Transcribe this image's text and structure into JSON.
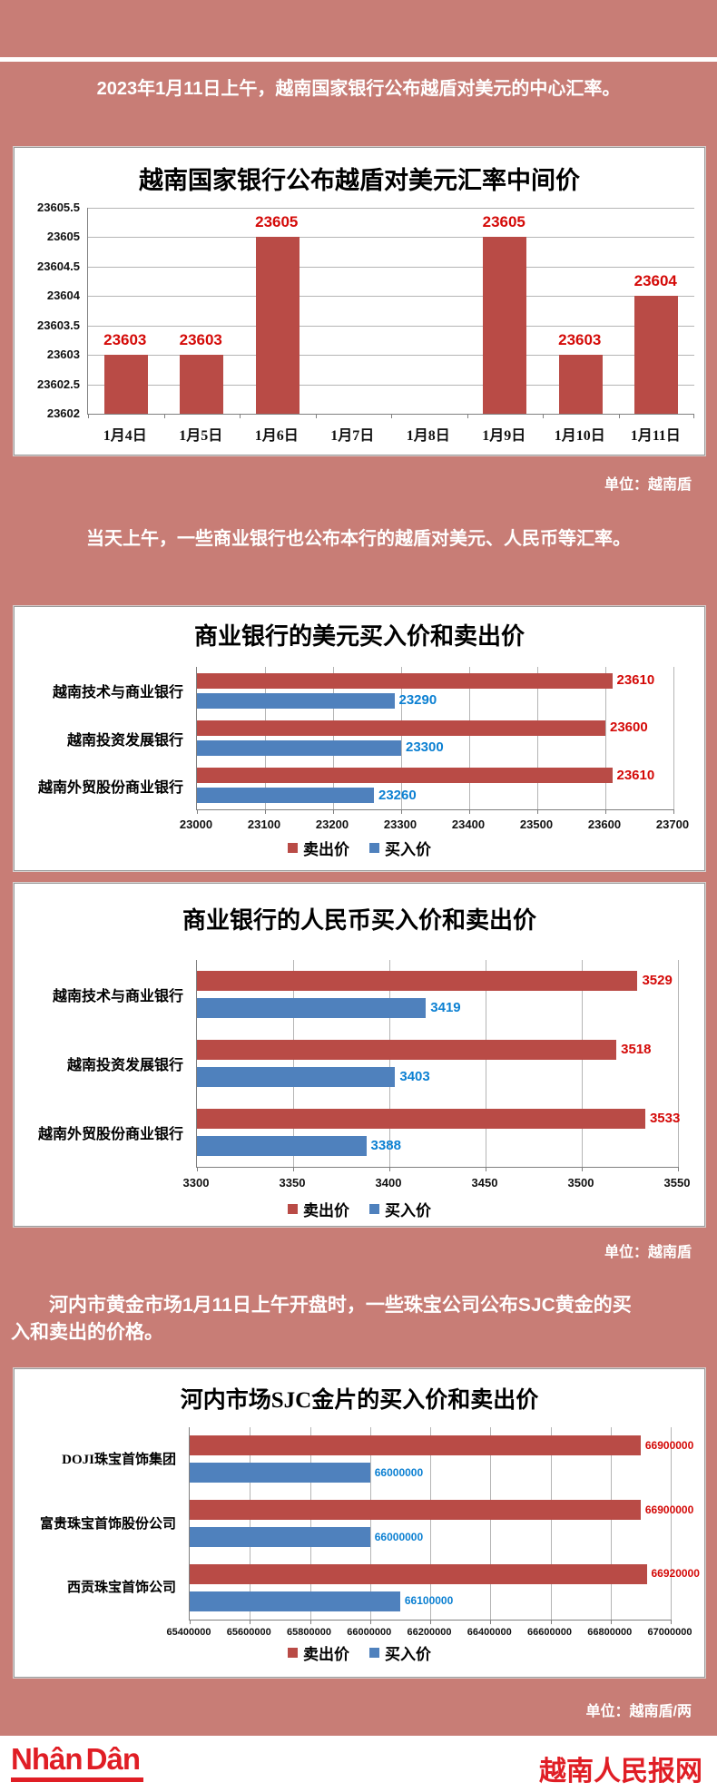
{
  "page": {
    "intro1": "2023年1月11日上午，越南国家银行公布越盾对美元的中心汇率。",
    "intro2": "当天上午，一些商业银行也公布本行的越盾对美元、人民币等汇率。",
    "intro3": "河内市黄金市场1月11日上午开盘时，一些珠宝公司公布SJC黄金的买入和卖出的价格。",
    "units": [
      "单位：越南盾",
      "单位：越南盾",
      "单位：越南盾/两"
    ],
    "footer": {
      "logo": "Nhân Dân",
      "site": "越南人民报网"
    }
  },
  "colors": {
    "background": "#c87d76",
    "bar_red": "#b94b46",
    "bar_blue": "#4f81bd",
    "label_red": "#d40a08",
    "label_blue": "#0c80d2",
    "footer_red": "#e01e25"
  },
  "chart_data": [
    {
      "type": "bar",
      "title": "越南国家银行公布越盾对美元汇率中间价",
      "categories": [
        "1月4日",
        "1月5日",
        "1月6日",
        "1月7日",
        "1月8日",
        "1月9日",
        "1月10日",
        "1月11日"
      ],
      "values": [
        23603,
        23603,
        23605,
        null,
        null,
        23605,
        23603,
        23604
      ],
      "ylim": [
        23602,
        23605.5
      ],
      "ytick_step": 0.5,
      "grid": true,
      "unit": "越南盾"
    },
    {
      "type": "bar-horizontal",
      "title": "商业银行的美元买入价和卖出价",
      "categories": [
        "越南技术与商业银行",
        "越南投资发展银行",
        "越南外贸股份商业银行"
      ],
      "series": [
        {
          "name": "卖出价",
          "values": [
            23610,
            23600,
            23610
          ]
        },
        {
          "name": "买入价",
          "values": [
            23290,
            23300,
            23260
          ]
        }
      ],
      "xlim": [
        23000,
        23700
      ],
      "xtick_step": 100,
      "grid": true,
      "legend_position": "bottom",
      "unit": "越南盾"
    },
    {
      "type": "bar-horizontal",
      "title": "商业银行的人民币买入价和卖出价",
      "categories": [
        "越南技术与商业银行",
        "越南投资发展银行",
        "越南外贸股份商业银行"
      ],
      "series": [
        {
          "name": "卖出价",
          "values": [
            3529,
            3518,
            3533
          ]
        },
        {
          "name": "买入价",
          "values": [
            3419,
            3403,
            3388
          ]
        }
      ],
      "xlim": [
        3300,
        3550
      ],
      "xtick_step": 50,
      "grid": true,
      "legend_position": "bottom",
      "unit": "越南盾"
    },
    {
      "type": "bar-horizontal",
      "title": "河内市场SJC金片的买入价和卖出价",
      "categories": [
        "DOJI珠宝首饰集团",
        "富贵珠宝首饰股份公司",
        "西贡珠宝首饰公司"
      ],
      "series": [
        {
          "name": "卖出价",
          "values": [
            66900000,
            66900000,
            66920000
          ]
        },
        {
          "name": "买入价",
          "values": [
            66000000,
            66000000,
            66100000
          ]
        }
      ],
      "xlim": [
        65400000,
        67000000
      ],
      "xtick_step": 200000,
      "grid": true,
      "legend_position": "bottom",
      "unit": "越南盾/两"
    }
  ]
}
